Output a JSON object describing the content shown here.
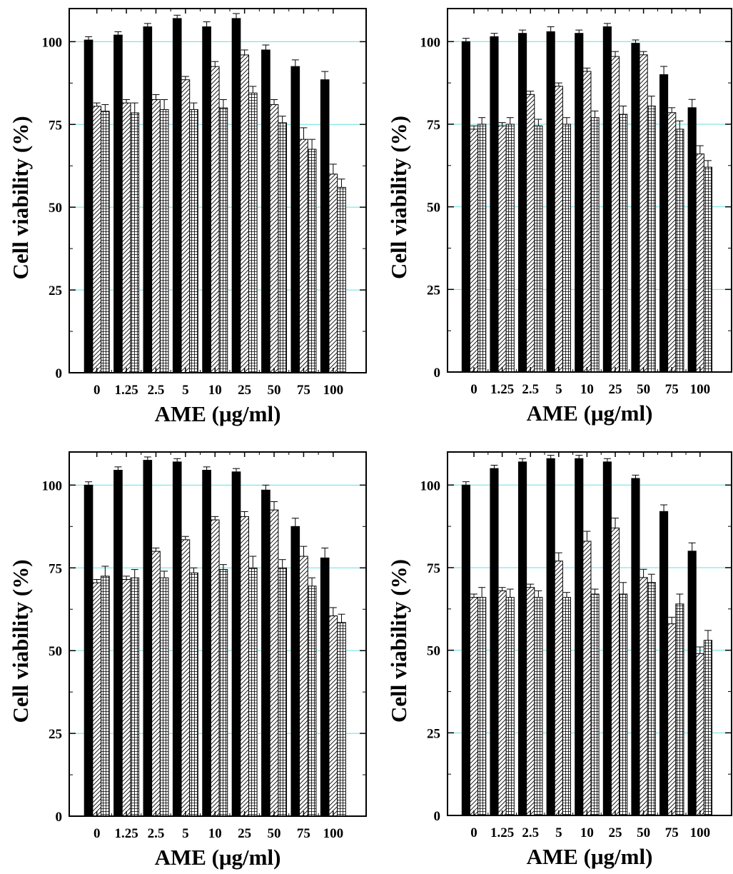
{
  "colors": {
    "gridline": "#66e0e0",
    "bar_solid": "#000000",
    "bar_pattern_bg": "#ffffff",
    "axis": "#000000"
  },
  "chart_data": [
    {
      "type": "bar",
      "xlabel": "AME (μg/ml)",
      "ylabel": "Cell viability (%)",
      "categories": [
        "0",
        "1.25",
        "2.5",
        "5",
        "10",
        "25",
        "50",
        "75",
        "100"
      ],
      "yticks": [
        "0",
        "25",
        "50",
        "75",
        "100"
      ],
      "ylim": [
        0,
        110
      ],
      "grid": "horizontal",
      "series": [
        {
          "pattern": "solid",
          "values": [
            100.5,
            102,
            104.5,
            107,
            104.5,
            107,
            97.5,
            92.5,
            88.5
          ],
          "errors": [
            1,
            1,
            1,
            1,
            1.5,
            1.5,
            1.5,
            2,
            2.5
          ]
        },
        {
          "pattern": "hatch",
          "values": [
            80.5,
            81.5,
            82.5,
            88.5,
            92.5,
            96,
            81,
            70.5,
            60
          ],
          "errors": [
            1,
            1,
            1.5,
            1,
            1.5,
            1.5,
            1.5,
            3.5,
            3
          ]
        },
        {
          "pattern": "grid",
          "values": [
            79,
            78.5,
            79.5,
            79.5,
            80,
            84.5,
            75.5,
            67.5,
            56
          ],
          "errors": [
            2,
            3,
            3,
            2,
            2.5,
            2,
            2,
            3,
            2.5
          ]
        }
      ]
    },
    {
      "type": "bar",
      "xlabel": "AME (μg/ml)",
      "ylabel": "Cell viability (%)",
      "categories": [
        "0",
        "1.25",
        "2.5",
        "5",
        "10",
        "25",
        "50",
        "75",
        "100"
      ],
      "yticks": [
        "0",
        "25",
        "50",
        "75",
        "100"
      ],
      "ylim": [
        0,
        110
      ],
      "grid": "horizontal",
      "series": [
        {
          "pattern": "solid",
          "values": [
            100,
            101.5,
            102.5,
            103,
            102.5,
            104.5,
            99.5,
            90,
            80
          ],
          "errors": [
            1,
            1,
            1,
            1.5,
            1,
            1,
            1,
            2.5,
            2.5
          ]
        },
        {
          "pattern": "hatch",
          "values": [
            73.5,
            74.5,
            84,
            86.5,
            91,
            95.5,
            96,
            78.5,
            66
          ],
          "errors": [
            1,
            1,
            1,
            1,
            1,
            1.5,
            1,
            1.5,
            2.5
          ]
        },
        {
          "pattern": "grid",
          "values": [
            75,
            75,
            74.5,
            75,
            77,
            78,
            80.5,
            73.5,
            62
          ],
          "errors": [
            2,
            2,
            2,
            2,
            2,
            2.5,
            3,
            2.5,
            2
          ]
        }
      ]
    },
    {
      "type": "bar",
      "xlabel": "AME (μg/ml)",
      "ylabel": "Cell viability (%)",
      "categories": [
        "0",
        "1.25",
        "2.5",
        "5",
        "10",
        "25",
        "50",
        "75",
        "100"
      ],
      "yticks": [
        "0",
        "25",
        "50",
        "75",
        "100"
      ],
      "ylim": [
        0,
        110
      ],
      "grid": "horizontal",
      "series": [
        {
          "pattern": "solid",
          "values": [
            100,
            104.5,
            107.5,
            107,
            104.5,
            104,
            98.5,
            87.5,
            78
          ],
          "errors": [
            1,
            1,
            1,
            1,
            1,
            1,
            1.5,
            2.5,
            3
          ]
        },
        {
          "pattern": "hatch",
          "values": [
            70.5,
            71.5,
            80,
            83.5,
            89.5,
            90.5,
            92.5,
            78.5,
            60.5
          ],
          "errors": [
            1,
            1,
            1,
            1,
            1,
            1.5,
            2.5,
            3,
            2.5
          ]
        },
        {
          "pattern": "grid",
          "values": [
            72.5,
            72,
            72,
            73.5,
            74.5,
            75,
            75,
            69.5,
            58.5
          ],
          "errors": [
            3,
            2.5,
            2,
            1.5,
            1.5,
            3.5,
            2.5,
            2.5,
            2.5
          ]
        }
      ]
    },
    {
      "type": "bar",
      "xlabel": "AME (μg/ml)",
      "ylabel": "Cell viability (%)",
      "categories": [
        "0",
        "1.25",
        "2.5",
        "5",
        "10",
        "25",
        "50",
        "75",
        "100"
      ],
      "yticks": [
        "0",
        "25",
        "50",
        "75",
        "100"
      ],
      "ylim": [
        0,
        110
      ],
      "grid": "horizontal",
      "series": [
        {
          "pattern": "solid",
          "values": [
            100,
            105,
            107,
            108,
            108,
            107,
            102,
            92,
            80
          ],
          "errors": [
            1,
            1,
            1,
            1,
            1,
            1,
            1,
            2,
            2.5
          ]
        },
        {
          "pattern": "hatch",
          "values": [
            66,
            68,
            69,
            77,
            83,
            87,
            72,
            58,
            49
          ],
          "errors": [
            1,
            1,
            1,
            2.5,
            3,
            3,
            2.5,
            2,
            2
          ]
        },
        {
          "pattern": "grid",
          "values": [
            66,
            66,
            66,
            66,
            67,
            67,
            70.5,
            64,
            53
          ],
          "errors": [
            3,
            2.5,
            2,
            1.5,
            1.5,
            3.5,
            2.5,
            3,
            3
          ]
        }
      ]
    }
  ]
}
